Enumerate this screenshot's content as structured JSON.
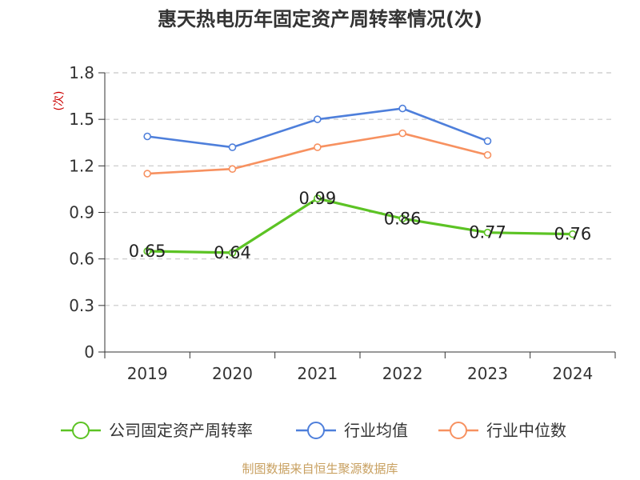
{
  "chart_data": {
    "type": "line",
    "title": "惠天热电历年固定资产周转率情况(次)",
    "ylabel": "(次)",
    "categories": [
      "2019",
      "2020",
      "2021",
      "2022",
      "2023",
      "2024"
    ],
    "ylim": [
      0,
      1.8
    ],
    "yticks": [
      "0",
      "0.3",
      "0.6",
      "0.9",
      "1.2",
      "1.5",
      "1.8"
    ],
    "grid": true,
    "legend_position": "bottom",
    "series": [
      {
        "name": "公司固定资产周转率",
        "color": "#5cc324",
        "values": [
          0.65,
          0.64,
          0.99,
          0.86,
          0.77,
          0.76
        ],
        "labels": [
          "0.65",
          "0.64",
          "0.99",
          "0.86",
          "0.77",
          "0.76"
        ]
      },
      {
        "name": "行业均值",
        "color": "#4e7fdb",
        "values": [
          1.39,
          1.32,
          1.5,
          1.57,
          1.36,
          null
        ]
      },
      {
        "name": "行业中位数",
        "color": "#f79160",
        "values": [
          1.15,
          1.18,
          1.32,
          1.41,
          1.27,
          null
        ]
      }
    ]
  },
  "footer": {
    "source": "制图数据来自恒生聚源数据库"
  }
}
